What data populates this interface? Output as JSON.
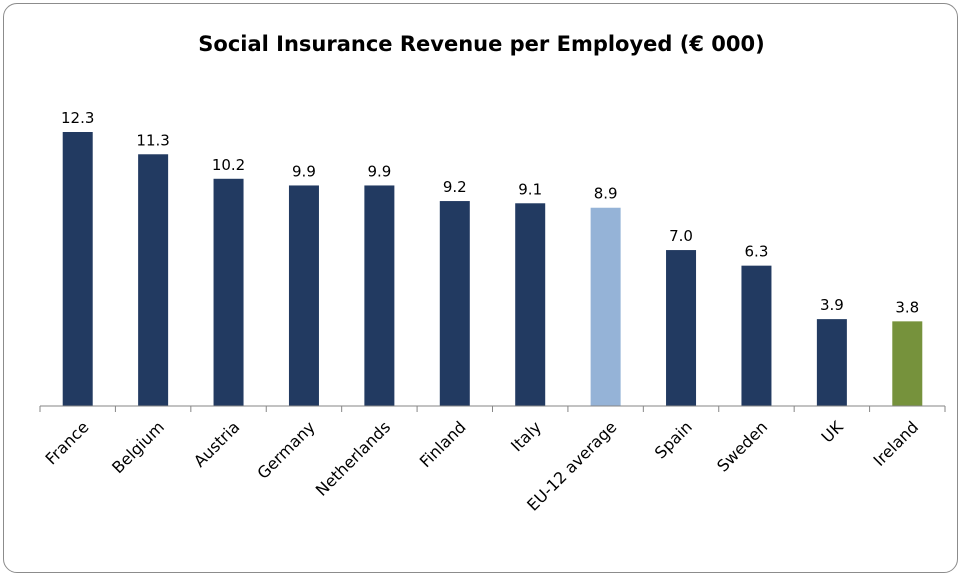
{
  "chart_data": {
    "type": "bar",
    "title": "Social  Insurance Revenue per Employed (€ 000)",
    "categories": [
      "France",
      "Belgium",
      "Austria",
      "Germany",
      "Netherlands",
      "Finland",
      "Italy",
      "EU-12 average",
      "Spain",
      "Sweden",
      "UK",
      "Ireland"
    ],
    "values": [
      12.3,
      11.3,
      10.2,
      9.9,
      9.9,
      9.2,
      9.1,
      8.9,
      7.0,
      6.3,
      3.9,
      3.8
    ],
    "value_labels": [
      "12.3",
      "11.3",
      "10.2",
      "9.9",
      "9.9",
      "9.2",
      "9.1",
      "8.9",
      "7.0",
      "6.3",
      "3.9",
      "3.8"
    ],
    "bar_colors": [
      "#223a61",
      "#223a61",
      "#223a61",
      "#223a61",
      "#223a61",
      "#223a61",
      "#223a61",
      "#95b3d7",
      "#223a61",
      "#223a61",
      "#223a61",
      "#76923c"
    ],
    "ylim": [
      0,
      12.3
    ],
    "xlabel": "",
    "ylabel": "",
    "grid": false,
    "legend": "none"
  }
}
